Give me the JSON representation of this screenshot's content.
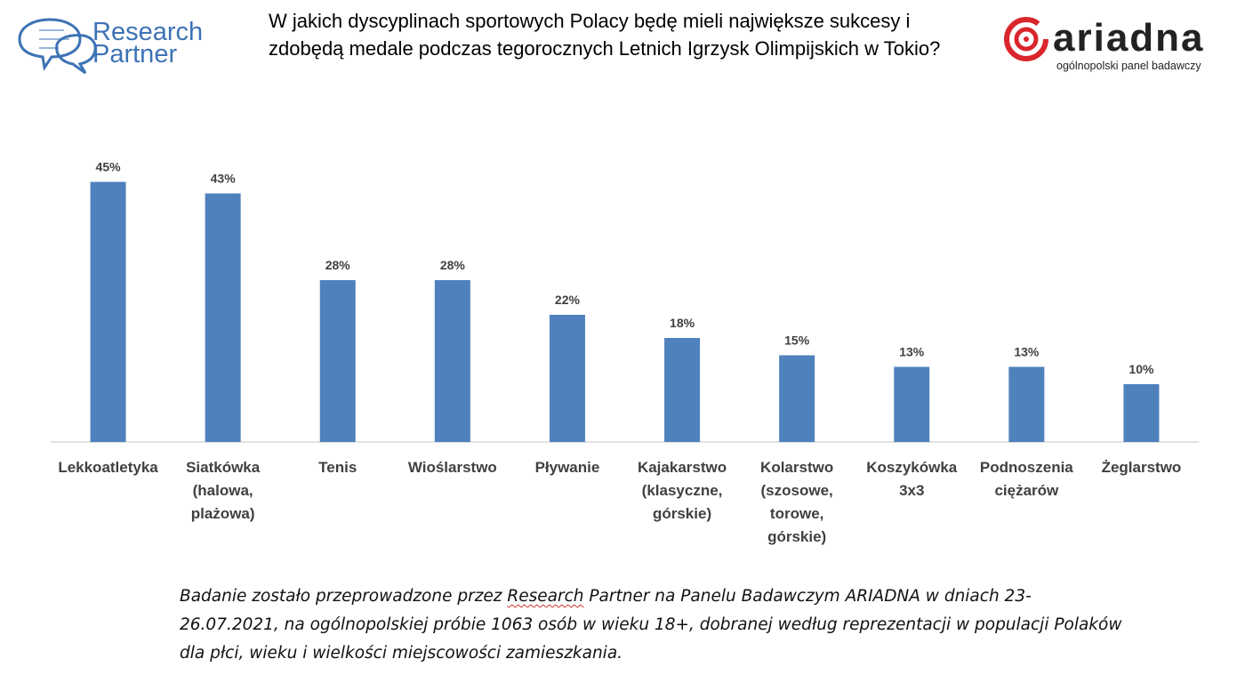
{
  "logos": {
    "left_line1": "Research",
    "left_line2": "Partner",
    "right_word": "ariadna",
    "right_subtitle": "ogólnopolski panel badawczy"
  },
  "title": "W jakich dyscyplinach sportowych Polacy będę mieli największe sukcesy i zdobędą medale podczas tegorocznych Letnich Igrzysk Olimpijskich w Tokio?",
  "colors": {
    "bar": "#4f81bd",
    "axis": "#d9d9d9",
    "label": "#404040",
    "brand_blue": "#3d73b5",
    "brand_red": "#d9262c"
  },
  "chart_data": {
    "type": "bar",
    "categories": [
      [
        "Lekkoatletyka"
      ],
      [
        "Siatkówka",
        "(halowa,",
        "plażowa)"
      ],
      [
        "Tenis"
      ],
      [
        "Wioślarstwo"
      ],
      [
        "Pływanie"
      ],
      [
        "Kajakarstwo",
        "(klasyczne,",
        "górskie)"
      ],
      [
        "Kolarstwo",
        "(szosowe,",
        "torowe,",
        "górskie)"
      ],
      [
        "Koszykówka",
        "3x3"
      ],
      [
        "Podnoszenia",
        "ciężarów"
      ],
      [
        "Żeglarstwo"
      ]
    ],
    "values": [
      45,
      43,
      28,
      28,
      22,
      18,
      15,
      13,
      13,
      10
    ],
    "data_labels": [
      "45%",
      "43%",
      "28%",
      "28%",
      "22%",
      "18%",
      "15%",
      "13%",
      "13%",
      "10%"
    ],
    "unit": "%",
    "ylim": [
      0,
      50
    ],
    "grid": false,
    "legend": "none"
  },
  "footnote": {
    "part1": "Badanie zostało przeprowadzone przez ",
    "brand": "Research",
    "part2": " Partner na Panelu Badawczym ARIADNA w dniach 23-26.07.2021, na ogólnopolskiej próbie 1063 osób w wieku 18+, dobranej według reprezentacji w populacji Polaków dla płci, wieku i wielkości miejscowości zamieszkania."
  }
}
